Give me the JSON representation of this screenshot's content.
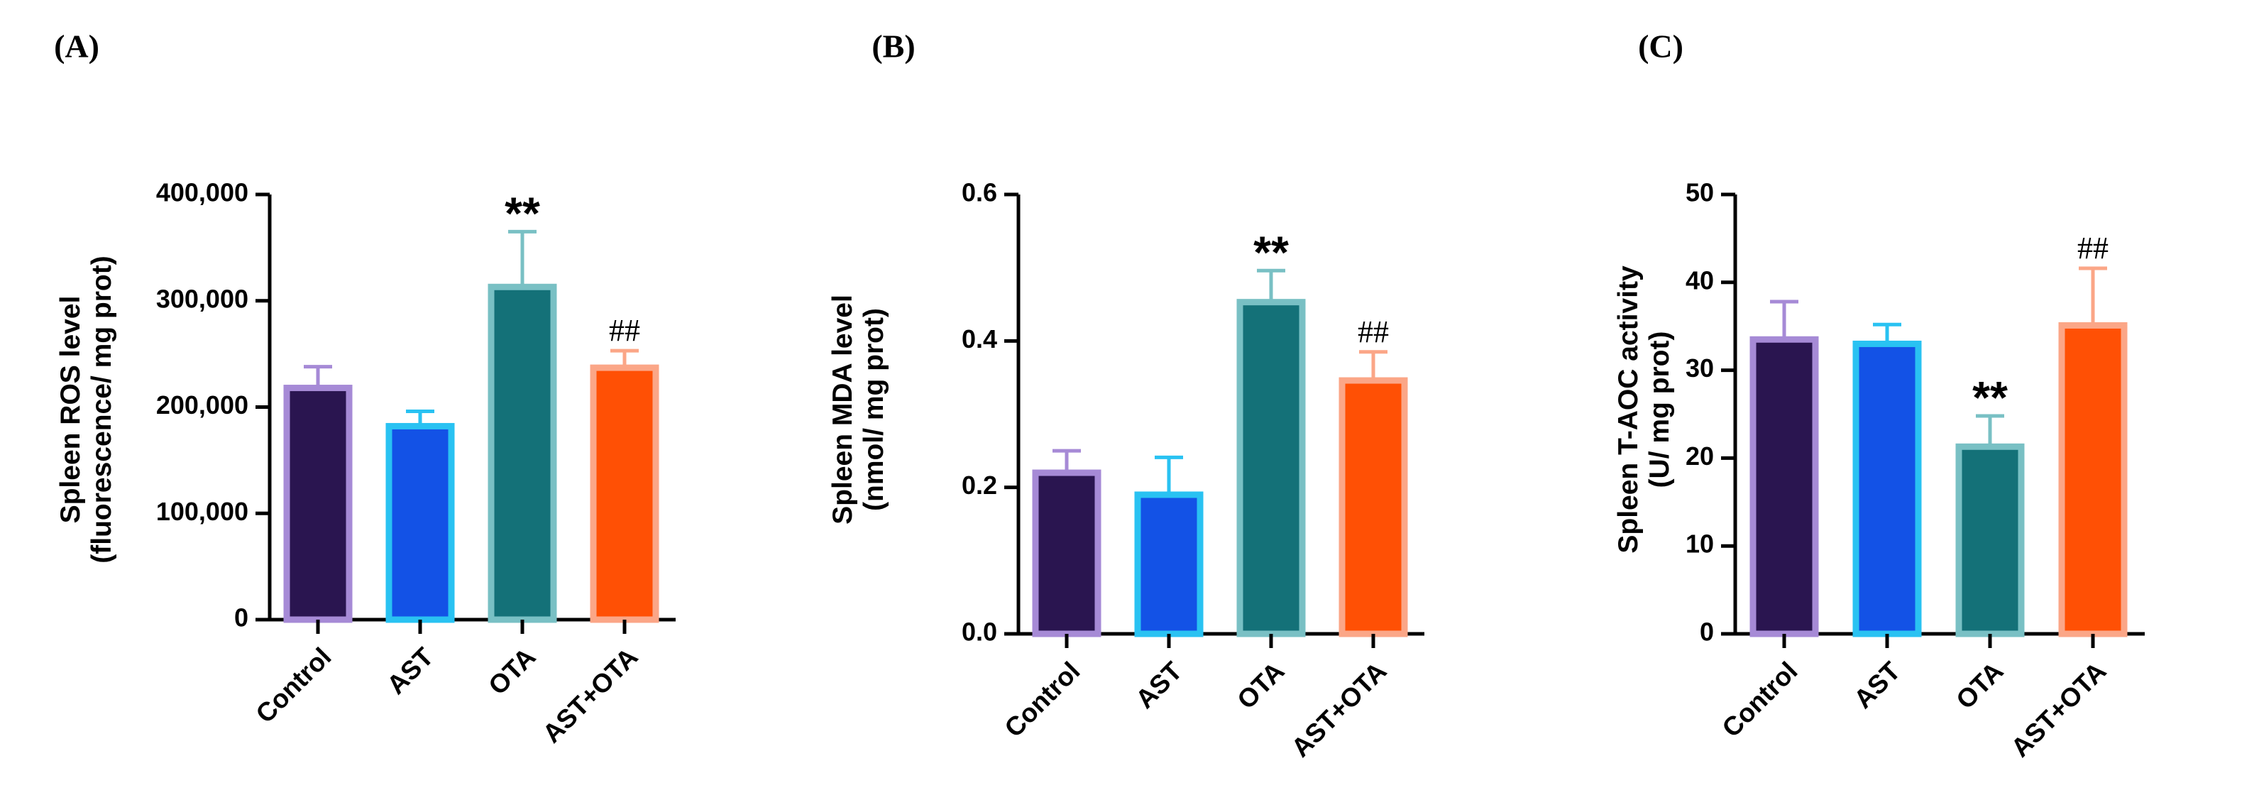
{
  "chart_data": [
    {
      "type": "bar",
      "panel_label": "(A)",
      "title": "",
      "xlabel": "",
      "ylabel": [
        "Spleen ROS level",
        "(fluorescence/ mg prot)"
      ],
      "categories": [
        "Control",
        "AST",
        "OTA",
        "AST+OTA"
      ],
      "values": [
        218000,
        182000,
        313000,
        237000
      ],
      "error_upper": [
        238000,
        196000,
        365000,
        253000
      ],
      "significance": [
        "",
        "",
        "**",
        "##"
      ],
      "ylim": [
        0,
        400000
      ],
      "yticks": [
        0,
        100000,
        200000,
        300000,
        400000
      ],
      "ytick_labels": [
        "0",
        "100,000",
        "200,000",
        "300,000",
        "400,000"
      ]
    },
    {
      "type": "bar",
      "panel_label": "(B)",
      "title": "",
      "xlabel": "",
      "ylabel": [
        "Spleen MDA level",
        "(nmol/ mg prot)"
      ],
      "categories": [
        "Control",
        "AST",
        "OTA",
        "AST+OTA"
      ],
      "values": [
        0.22,
        0.19,
        0.453,
        0.346
      ],
      "error_upper": [
        0.25,
        0.241,
        0.496,
        0.385
      ],
      "significance": [
        "",
        "",
        "**",
        "##"
      ],
      "ylim": [
        0,
        0.6
      ],
      "yticks": [
        0,
        0.2,
        0.4,
        0.6
      ],
      "ytick_labels": [
        "0.0",
        "0.2",
        "0.4",
        "0.6"
      ]
    },
    {
      "type": "bar",
      "panel_label": "(C)",
      "title": "",
      "xlabel": "",
      "ylabel": [
        "Spleen T-AOC activity",
        "(U/ mg prot)"
      ],
      "categories": [
        "Control",
        "AST",
        "OTA",
        "AST+OTA"
      ],
      "values": [
        33.5,
        33.0,
        21.3,
        35.1
      ],
      "error_upper": [
        37.8,
        35.2,
        24.8,
        41.6
      ],
      "significance": [
        "",
        "",
        "**",
        "##"
      ],
      "ylim": [
        0,
        50
      ],
      "yticks": [
        0,
        10,
        20,
        30,
        40,
        50
      ],
      "ytick_labels": [
        "0",
        "10",
        "20",
        "30",
        "40",
        "50"
      ]
    }
  ],
  "colors": {
    "fills": [
      "#2a1550",
      "#1352e6",
      "#147178",
      "#ff5005"
    ],
    "outlines": [
      "#a68ad6",
      "#29c2f2",
      "#79c0c4",
      "#fba687"
    ],
    "axis": "#000000"
  }
}
